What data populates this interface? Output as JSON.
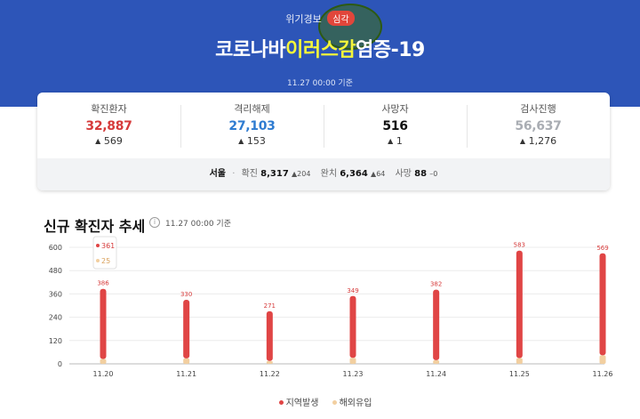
{
  "header": {
    "alert_label": "위기경보",
    "alert_level": "심각",
    "title_pre": "코로나바",
    "title_hl": "이러스감",
    "title_post": "염증-19",
    "update_time": "11.27 00:00 기준"
  },
  "stats": [
    {
      "label": "확진환자",
      "value": "32,887",
      "delta": "569",
      "color": "#d63b3b"
    },
    {
      "label": "격리해제",
      "value": "27,103",
      "delta": "153",
      "color": "#2f7cd1"
    },
    {
      "label": "사망자",
      "value": "516",
      "delta": "1",
      "color": "#111111"
    },
    {
      "label": "검사진행",
      "value": "56,637",
      "delta": "1,276",
      "color": "#a9adb3"
    }
  ],
  "region": {
    "name": "서울",
    "confirmed_label": "확진",
    "confirmed": "8,317",
    "confirmed_delta": "204",
    "recovered_label": "완치",
    "recovered": "6,364",
    "recovered_delta": "64",
    "deaths_label": "사망",
    "deaths": "88",
    "deaths_delta": "0"
  },
  "trend": {
    "title": "신규 확진자 추세",
    "time": "11.27 00:00 기준"
  },
  "chart_data": {
    "type": "bar",
    "categories": [
      "11.20",
      "11.21",
      "11.22",
      "11.23",
      "11.24",
      "11.25",
      "11.26"
    ],
    "series": [
      {
        "name": "지역발생",
        "values": [
          361,
          302,
          256,
          318,
          363,
          553,
          525
        ],
        "color": "#e04545"
      },
      {
        "name": "해외유입",
        "values": [
          25,
          28,
          15,
          31,
          19,
          30,
          44
        ],
        "color": "#f2cfa0"
      }
    ],
    "totals": [
      386,
      330,
      271,
      349,
      382,
      583,
      569
    ],
    "tooltip": {
      "local": "361",
      "overseas": "25"
    },
    "yticks": [
      0,
      120,
      240,
      360,
      480,
      600
    ],
    "ylim": [
      0,
      600
    ],
    "stacked": true,
    "legend_position": "bottom"
  },
  "legend": [
    {
      "label": "지역발생",
      "color": "#e04545"
    },
    {
      "label": "해외유입",
      "color": "#f2cfa0"
    }
  ]
}
